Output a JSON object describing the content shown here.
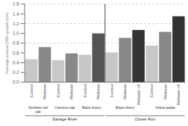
{
  "chart_data": {
    "type": "bar",
    "ylabel": "Average annual DBH growth (cm)",
    "categories": [
      "Control",
      "Release",
      "Control",
      "Release",
      "Control",
      "Release",
      "Control",
      "Release",
      "Release +5",
      "Control",
      "Release",
      "Release +5"
    ],
    "values": [
      0.47,
      0.72,
      0.45,
      0.59,
      0.56,
      1.0,
      0.61,
      0.91,
      1.07,
      0.75,
      1.03,
      1.35
    ],
    "colors": [
      "#c8c8c8",
      "#888888",
      "#c8c8c8",
      "#888888",
      "#c8c8c8",
      "#555555",
      "#c8c8c8",
      "#888888",
      "#333333",
      "#c8c8c8",
      "#888888",
      "#333333"
    ],
    "groups": [
      "Northern red\noak",
      "Northern red\noak",
      "Chestnut oak",
      "Chestnut oak",
      "Black cherry",
      "Black cherry",
      "Black cherry",
      "Black cherry",
      "Black cherry",
      "Yellow poplar",
      "Yellow poplar",
      "Yellow poplar"
    ],
    "sites": [
      "Savage River",
      "Savage River",
      "Savage River",
      "Savage River",
      "Savage River",
      "Savage River",
      "Clover Run",
      "Clover Run",
      "Clover Run",
      "Clover Run",
      "Clover Run",
      "Clover Run"
    ],
    "ylim": [
      0,
      1.6
    ],
    "yticks": [
      {
        "value": 0,
        "label": "0.0"
      },
      0.2,
      0.4,
      0.6,
      0.8,
      {
        "value": 1,
        "label": "1.0"
      },
      1.2,
      1.4,
      1.6
    ],
    "grid": true
  }
}
